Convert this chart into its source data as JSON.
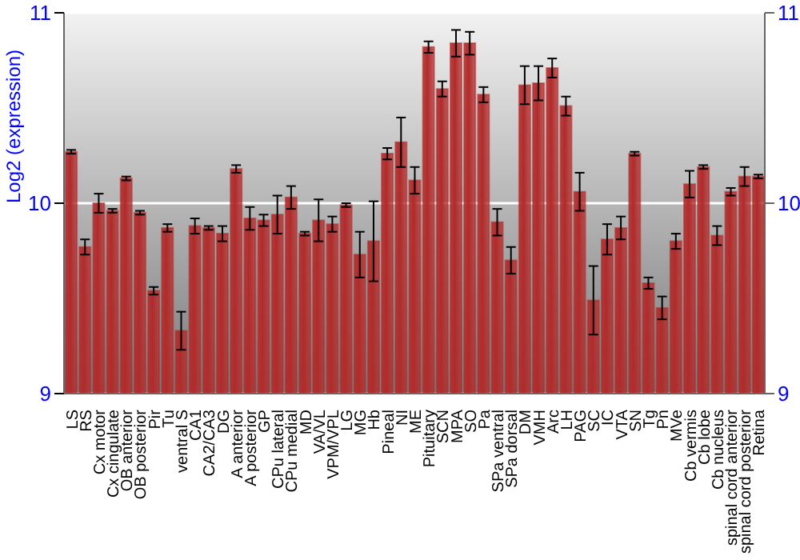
{
  "chart_data": {
    "type": "bar",
    "ylabel": "Log2 (expression)",
    "categories": [
      "LS",
      "RS",
      "Cx motor",
      "Cx cingulate",
      "OB anterior",
      "OB posterior",
      "Pir",
      "Tu",
      "ventral S",
      "CA1",
      "CA2/CA3",
      "DG",
      "A anterior",
      "A posterior",
      "GP",
      "CPu lateral",
      "CPu medial",
      "MD",
      "VA/VL",
      "VPM/VPL",
      "LG",
      "MG",
      "Hb",
      "Pineal",
      "NI",
      "ME",
      "Pituitary",
      "SCN",
      "MPA",
      "SO",
      "Pa",
      "SPa ventral",
      "SPa dorsal",
      "DM",
      "VMH",
      "Arc",
      "LH",
      "PAG",
      "SC",
      "IC",
      "VTA",
      "SN",
      "Tg",
      "Pn",
      "MVe",
      "Cb vermis",
      "Cb lobe",
      "Cb nucleus",
      "spinal cord anterior",
      "spinal cord posterior",
      "Retina"
    ],
    "values": [
      10.27,
      9.77,
      10.0,
      9.96,
      10.13,
      9.95,
      9.54,
      9.87,
      9.33,
      9.88,
      9.87,
      9.84,
      10.18,
      9.92,
      9.91,
      9.94,
      10.03,
      9.84,
      9.91,
      9.89,
      9.99,
      9.73,
      9.8,
      10.26,
      10.32,
      10.12,
      10.82,
      10.6,
      10.84,
      10.84,
      10.57,
      9.9,
      9.7,
      10.62,
      10.63,
      10.71,
      10.51,
      10.06,
      9.49,
      9.81,
      9.87,
      10.26,
      9.58,
      9.45,
      9.8,
      10.1,
      10.19,
      9.83,
      10.06,
      10.14,
      10.14
    ],
    "errors": [
      0.01,
      0.04,
      0.05,
      0.01,
      0.01,
      0.01,
      0.02,
      0.02,
      0.1,
      0.04,
      0.01,
      0.04,
      0.02,
      0.06,
      0.03,
      0.1,
      0.06,
      0.01,
      0.11,
      0.04,
      0.01,
      0.12,
      0.21,
      0.03,
      0.13,
      0.07,
      0.03,
      0.04,
      0.07,
      0.06,
      0.04,
      0.07,
      0.07,
      0.1,
      0.09,
      0.05,
      0.05,
      0.1,
      0.18,
      0.08,
      0.06,
      0.01,
      0.03,
      0.06,
      0.04,
      0.07,
      0.01,
      0.05,
      0.02,
      0.05,
      0.01
    ],
    "color": "#b22a2a",
    "ylim": [
      9,
      11
    ],
    "yticks": [
      9,
      10,
      11
    ],
    "y2lim": [
      9,
      11
    ],
    "y2ticks": [
      9,
      10,
      11
    ],
    "grid": "y"
  }
}
